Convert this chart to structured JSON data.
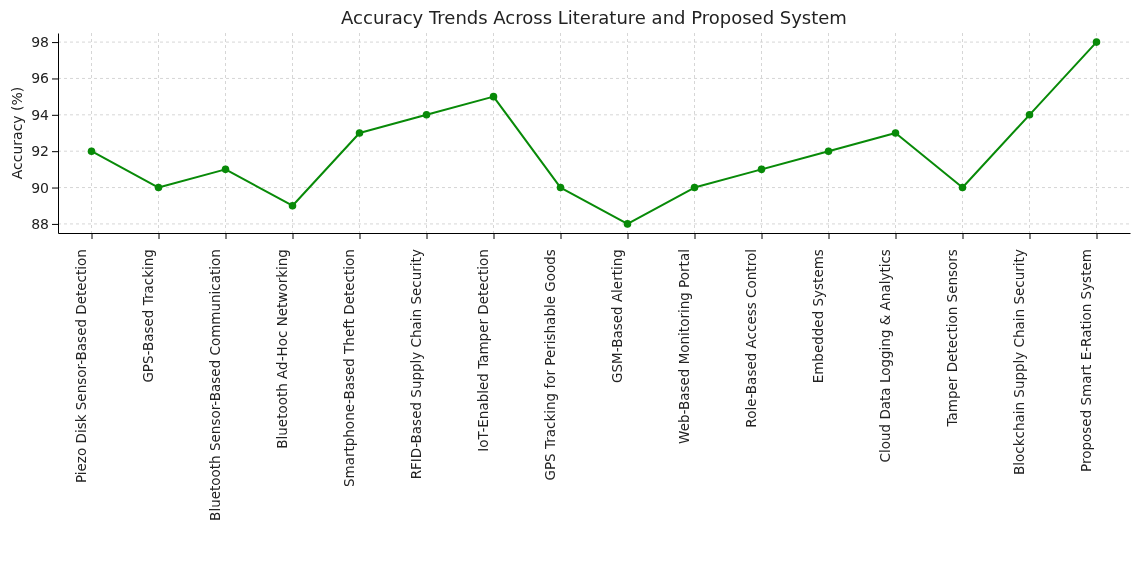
{
  "chart_data": {
    "type": "line",
    "title": "Accuracy Trends Across Literature and Proposed System",
    "ylabel": "Accuracy (%)",
    "categories": [
      "Piezo Disk Sensor-Based Detection",
      "GPS-Based Tracking",
      "Bluetooth Sensor-Based Communication",
      "Bluetooth Ad-Hoc Networking",
      "Smartphone-Based Theft Detection",
      "RFID-Based Supply Chain Security",
      "IoT-Enabled Tamper Detection",
      "GPS Tracking for Perishable Goods",
      "GSM-Based Alerting",
      "Web-Based Monitoring Portal",
      "Role-Based Access Control",
      "Embedded Systems",
      "Cloud Data Logging & Analytics",
      "Tamper Detection Sensors",
      "Blockchain Supply Chain Security",
      "Proposed Smart E-Ration System"
    ],
    "series": [
      {
        "color": "#088a08",
        "values": [
          92,
          90,
          91,
          89,
          93,
          94,
          95,
          90,
          88,
          90,
          91,
          92,
          93,
          90,
          94,
          98
        ]
      }
    ],
    "ylim": [
      87.5,
      98.5
    ],
    "yticks": [
      88,
      90,
      92,
      94,
      96,
      98
    ],
    "grid": true,
    "marker": "circle",
    "line_style": "solid"
  }
}
